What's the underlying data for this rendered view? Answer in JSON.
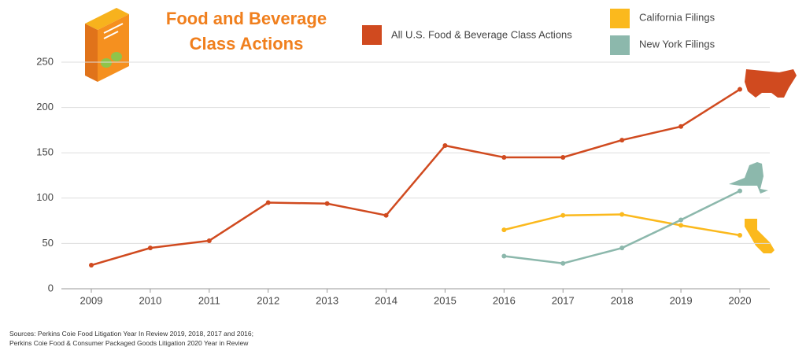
{
  "chart_data": {
    "type": "line",
    "title": "Food and Beverage Class Actions",
    "categories": [
      "2009",
      "2010",
      "2011",
      "2012",
      "2013",
      "2014",
      "2015",
      "2016",
      "2017",
      "2018",
      "2019",
      "2020"
    ],
    "series": [
      {
        "name": "All U.S. Food & Beverage Class Actions",
        "color": "#d04a1f",
        "values": [
          26,
          45,
          53,
          95,
          94,
          81,
          158,
          145,
          145,
          164,
          179,
          220
        ]
      },
      {
        "name": "California Filings",
        "color": "#fbb91d",
        "values": [
          null,
          null,
          null,
          null,
          null,
          null,
          null,
          65,
          81,
          82,
          70,
          59
        ]
      },
      {
        "name": "New York Filings",
        "color": "#8cb8ac",
        "values": [
          null,
          null,
          null,
          null,
          null,
          null,
          null,
          36,
          28,
          45,
          76,
          108
        ]
      }
    ],
    "ylim": [
      0,
      250
    ],
    "yticks": [
      0,
      50,
      100,
      150,
      200,
      250
    ],
    "grid": true,
    "sources": [
      "Sources: Perkins Coie Food Litigation Year In Review 2019, 2018, 2017 and 2016;",
      "Perkins Coie Food & Consumer Packaged Goods Litigation 2020 Year in Review"
    ]
  }
}
